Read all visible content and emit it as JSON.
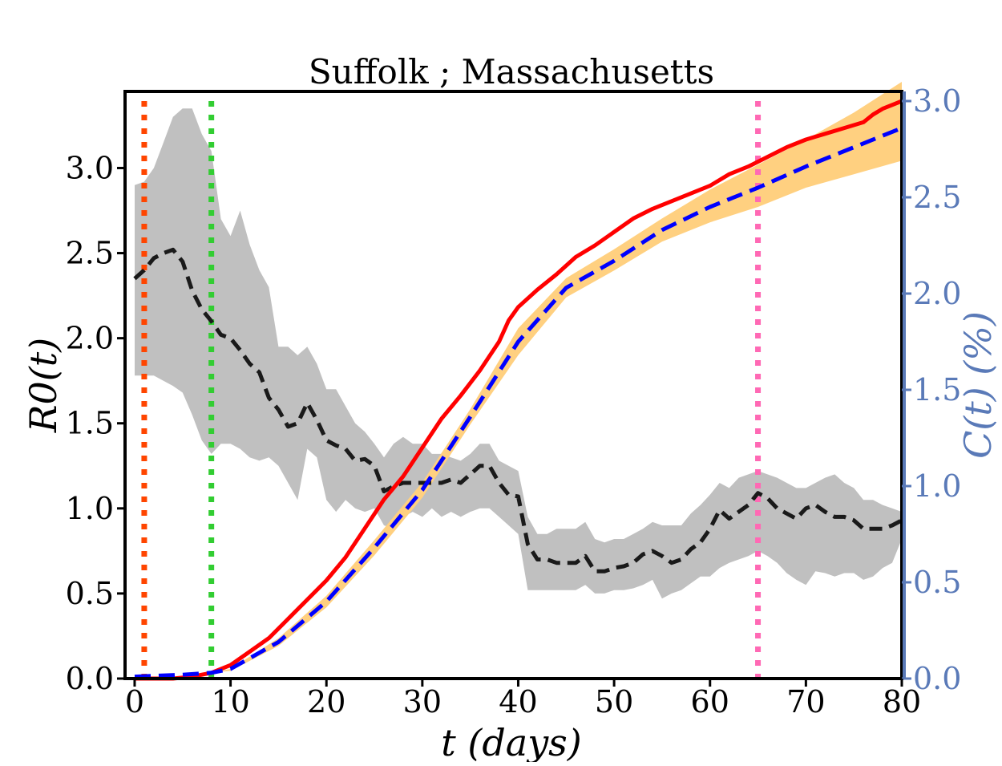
{
  "chart_data": {
    "type": "line",
    "title": "Suffolk ; Massachusetts",
    "xlabel": "t (days)",
    "ylabel_left": "R0(t)",
    "ylabel_right": "C(t) (%)",
    "xlim": [
      -1,
      80
    ],
    "ylim_left": [
      0,
      3.45
    ],
    "ylim_right": [
      0,
      3.05
    ],
    "x_ticks": [
      "0",
      "10",
      "20",
      "30",
      "40",
      "50",
      "60",
      "70",
      "80"
    ],
    "y_ticks_left": [
      "0.0",
      "0.5",
      "1.0",
      "1.5",
      "2.0",
      "2.5",
      "3.0"
    ],
    "y_ticks_right": [
      "0.0",
      "0.5",
      "1.0",
      "1.5",
      "2.0",
      "2.5",
      "3.0"
    ],
    "colors": {
      "r0_line": "#1a1a1a",
      "r0_band": "#c0c0c0",
      "c_observed": "#ff0000",
      "c_model": "#0000ff",
      "c_band": "#ffd080",
      "right_axis": "#5a7ab8",
      "event_1": "#ff4500",
      "event_2": "#32cd32",
      "event_3": "#ff69b4"
    },
    "vertical_lines": [
      {
        "x": 1,
        "color": "#ff4500"
      },
      {
        "x": 8,
        "color": "#32cd32"
      },
      {
        "x": 65,
        "color": "#ff69b4"
      }
    ],
    "series": [
      {
        "axis": "left",
        "style": "dashed",
        "x": [
          0,
          1,
          2,
          3,
          4,
          5,
          6,
          7,
          8,
          9,
          10,
          11,
          12,
          13,
          14,
          15,
          16,
          17,
          18,
          19,
          20,
          21,
          22,
          23,
          24,
          25,
          26,
          27,
          28,
          29,
          30,
          31,
          32,
          33,
          34,
          35,
          36,
          37,
          38,
          39,
          40,
          41,
          42,
          43,
          44,
          45,
          46,
          47,
          48,
          49,
          50,
          51,
          52,
          53,
          54,
          55,
          56,
          57,
          58,
          59,
          60,
          61,
          62,
          63,
          64,
          65,
          66,
          67,
          68,
          69,
          70,
          71,
          72,
          73,
          74,
          75,
          76,
          77,
          78,
          79,
          80
        ],
        "values": [
          2.35,
          2.4,
          2.47,
          2.5,
          2.52,
          2.45,
          2.28,
          2.17,
          2.1,
          2.02,
          2.0,
          1.93,
          1.85,
          1.8,
          1.65,
          1.58,
          1.48,
          1.5,
          1.62,
          1.52,
          1.4,
          1.37,
          1.35,
          1.28,
          1.29,
          1.25,
          1.1,
          1.13,
          1.15,
          1.15,
          1.15,
          1.15,
          1.15,
          1.17,
          1.15,
          1.2,
          1.25,
          1.25,
          1.15,
          1.08,
          1.07,
          0.79,
          0.7,
          0.7,
          0.68,
          0.68,
          0.68,
          0.72,
          0.63,
          0.63,
          0.65,
          0.66,
          0.68,
          0.73,
          0.75,
          0.72,
          0.68,
          0.7,
          0.76,
          0.8,
          0.88,
          0.99,
          0.94,
          0.98,
          1.02,
          1.09,
          1.06,
          1.0,
          0.97,
          0.94,
          1.0,
          1.02,
          0.98,
          0.95,
          0.95,
          0.93,
          0.88,
          0.88,
          0.88,
          0.9,
          0.93
        ],
        "lower": [
          1.78,
          1.78,
          1.78,
          1.75,
          1.72,
          1.68,
          1.55,
          1.4,
          1.32,
          1.38,
          1.38,
          1.35,
          1.3,
          1.28,
          1.3,
          1.25,
          1.15,
          1.05,
          1.35,
          1.3,
          1.05,
          0.98,
          1.05,
          1.0,
          0.98,
          1.0,
          0.9,
          0.88,
          0.95,
          0.98,
          0.95,
          1.0,
          0.95,
          0.98,
          0.95,
          0.98,
          1.0,
          1.0,
          0.95,
          0.9,
          0.85,
          0.52,
          0.52,
          0.52,
          0.52,
          0.52,
          0.52,
          0.55,
          0.5,
          0.5,
          0.52,
          0.52,
          0.53,
          0.55,
          0.58,
          0.47,
          0.5,
          0.52,
          0.56,
          0.6,
          0.6,
          0.65,
          0.68,
          0.7,
          0.72,
          0.75,
          0.72,
          0.68,
          0.62,
          0.58,
          0.55,
          0.63,
          0.62,
          0.6,
          0.62,
          0.62,
          0.58,
          0.6,
          0.65,
          0.68,
          0.82
        ],
        "upper": [
          2.9,
          2.92,
          3.0,
          3.15,
          3.3,
          3.35,
          3.35,
          3.2,
          3.1,
          2.7,
          2.6,
          2.75,
          2.55,
          2.4,
          2.3,
          1.95,
          1.95,
          1.9,
          1.95,
          1.85,
          1.7,
          1.7,
          1.6,
          1.5,
          1.45,
          1.38,
          1.3,
          1.38,
          1.42,
          1.38,
          1.38,
          1.32,
          1.32,
          1.3,
          1.28,
          1.32,
          1.38,
          1.38,
          1.28,
          1.25,
          1.22,
          0.95,
          0.85,
          0.85,
          0.88,
          0.88,
          0.88,
          0.92,
          0.82,
          0.8,
          0.82,
          0.82,
          0.85,
          0.88,
          0.92,
          0.9,
          0.9,
          0.9,
          0.97,
          1.02,
          1.08,
          1.15,
          1.12,
          1.18,
          1.2,
          1.22,
          1.2,
          1.18,
          1.15,
          1.12,
          1.12,
          1.15,
          1.18,
          1.2,
          1.15,
          1.12,
          1.05,
          1.05,
          1.02,
          1.0,
          0.98
        ]
      },
      {
        "axis": "right",
        "style": "solid",
        "x": [
          0,
          2,
          4,
          6,
          8,
          10,
          12,
          14,
          16,
          18,
          20,
          22,
          24,
          26,
          28,
          30,
          32,
          34,
          36,
          38,
          39,
          40,
          42,
          44,
          46,
          48,
          50,
          52,
          54,
          56,
          58,
          60,
          62,
          64,
          66,
          68,
          70,
          72,
          74,
          76,
          77,
          78,
          80
        ],
        "values": [
          0.0,
          0.0,
          0.0,
          0.01,
          0.03,
          0.07,
          0.14,
          0.21,
          0.31,
          0.41,
          0.51,
          0.63,
          0.78,
          0.93,
          1.05,
          1.2,
          1.35,
          1.47,
          1.6,
          1.75,
          1.86,
          1.93,
          2.02,
          2.1,
          2.19,
          2.25,
          2.32,
          2.39,
          2.44,
          2.48,
          2.52,
          2.56,
          2.62,
          2.66,
          2.71,
          2.76,
          2.8,
          2.83,
          2.86,
          2.89,
          2.93,
          2.96,
          3.0
        ]
      },
      {
        "axis": "right",
        "style": "dashed",
        "x": [
          0,
          5,
          8,
          10,
          15,
          20,
          25,
          30,
          35,
          40,
          45,
          50,
          55,
          60,
          65,
          70,
          75,
          80
        ],
        "values": [
          0.01,
          0.02,
          0.03,
          0.05,
          0.19,
          0.4,
          0.68,
          0.98,
          1.36,
          1.75,
          2.03,
          2.17,
          2.33,
          2.45,
          2.55,
          2.66,
          2.76,
          2.86
        ],
        "lower": [
          0.01,
          0.02,
          0.03,
          0.04,
          0.17,
          0.37,
          0.64,
          0.94,
          1.32,
          1.68,
          1.98,
          2.12,
          2.27,
          2.37,
          2.45,
          2.55,
          2.62,
          2.69
        ],
        "upper": [
          0.01,
          0.02,
          0.03,
          0.05,
          0.21,
          0.43,
          0.72,
          1.02,
          1.4,
          1.82,
          2.08,
          2.23,
          2.39,
          2.54,
          2.67,
          2.8,
          2.94,
          3.1
        ]
      }
    ]
  }
}
